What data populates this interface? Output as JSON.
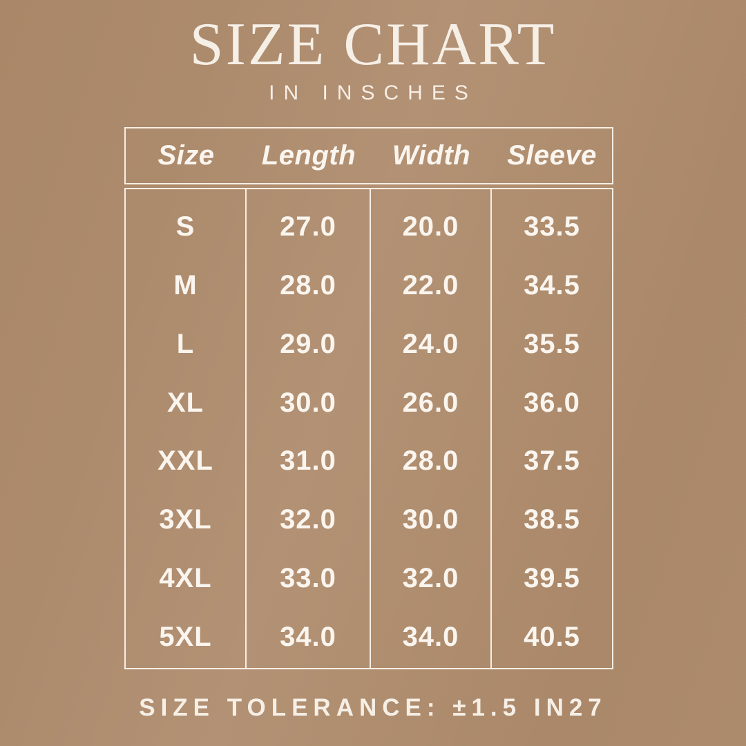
{
  "page": {
    "title": "SIZE CHART",
    "subtitle": "IN INSCHES",
    "footer": "SIZE TOLERANCE: ±1.5 IN27"
  },
  "colors": {
    "background": "#ac8a6c",
    "text_cream": "#f6efe6",
    "table_text": "#faf5ee",
    "table_line": "#f6efe5"
  },
  "chart_data": {
    "type": "table",
    "title": "SIZE CHART",
    "subtitle": "IN INSCHES",
    "units": "inches",
    "columns": [
      "Size",
      "Length",
      "Width",
      "Sleeve"
    ],
    "rows": [
      [
        "S",
        "27.0",
        "20.0",
        "33.5"
      ],
      [
        "M",
        "28.0",
        "22.0",
        "34.5"
      ],
      [
        "L",
        "29.0",
        "24.0",
        "35.5"
      ],
      [
        "XL",
        "30.0",
        "26.0",
        "36.0"
      ],
      [
        "XXL",
        "31.0",
        "28.0",
        "37.5"
      ],
      [
        "3XL",
        "32.0",
        "30.0",
        "38.5"
      ],
      [
        "4XL",
        "33.0",
        "32.0",
        "39.5"
      ],
      [
        "5XL",
        "34.0",
        "34.0",
        "40.5"
      ]
    ],
    "footnote": "SIZE TOLERANCE: ±1.5 IN27",
    "layout": {
      "grid": "no horizontal row lines; vertical column dividers; separate bordered header box"
    }
  }
}
